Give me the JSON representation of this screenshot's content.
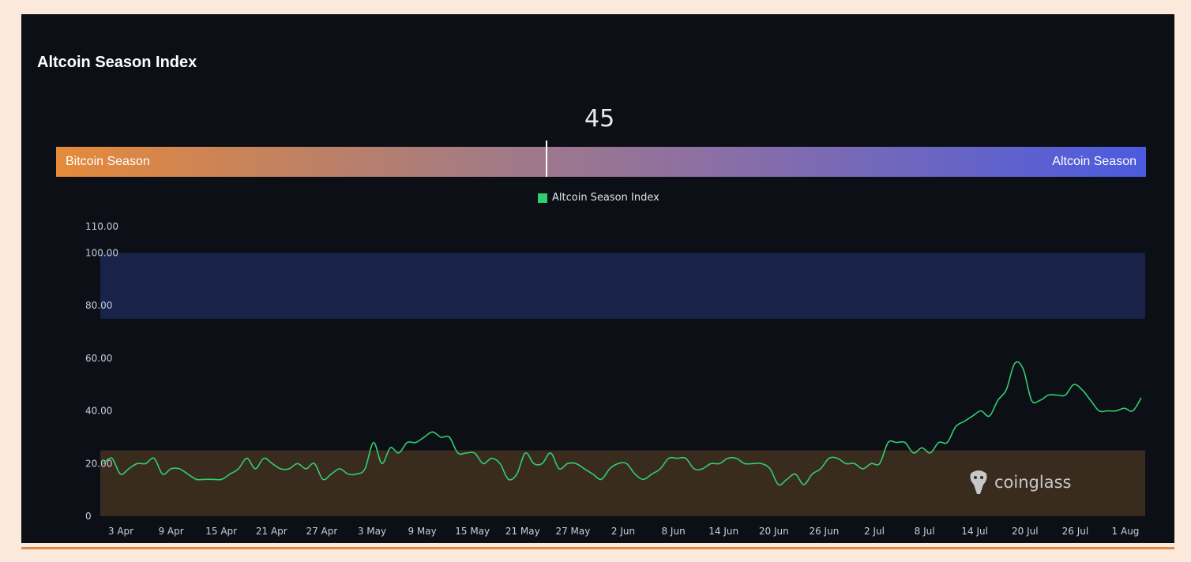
{
  "chart_data": {
    "type": "line",
    "title": "Altcoin Season Index",
    "current_value": "45",
    "gauge": {
      "left_label": "Bitcoin Season",
      "right_label": "Altcoin Season",
      "value": 45,
      "range": [
        0,
        100
      ]
    },
    "legend": [
      {
        "name": "Altcoin Season Index",
        "color": "#2fcf6f"
      }
    ],
    "ylim": [
      0,
      110
    ],
    "yticks": [
      "0",
      "20.00",
      "40.00",
      "60.00",
      "80.00",
      "100.00",
      "110.00"
    ],
    "ytick_values": [
      0,
      20,
      40,
      60,
      80,
      100,
      110
    ],
    "bands": [
      {
        "from": 75,
        "to": 100,
        "color": "#19234a"
      },
      {
        "from": 0,
        "to": 25,
        "color": "#3a2b1f"
      }
    ],
    "x_ticks": [
      "3 Apr",
      "9 Apr",
      "15 Apr",
      "21 Apr",
      "27 Apr",
      "3 May",
      "9 May",
      "15 May",
      "21 May",
      "27 May",
      "2 Jun",
      "8 Jun",
      "14 Jun",
      "20 Jun",
      "26 Jun",
      "2 Jul",
      "8 Jul",
      "14 Jul",
      "20 Jul",
      "26 Jul",
      "1 Aug"
    ],
    "series": [
      {
        "name": "Altcoin Season Index",
        "color": "#2fcf6f",
        "values": [
          20,
          22,
          16,
          18,
          20,
          20,
          22,
          16,
          18,
          18,
          16,
          14,
          14,
          14,
          14,
          16,
          18,
          22,
          18,
          22,
          20,
          18,
          18,
          20,
          18,
          20,
          14,
          16,
          18,
          16,
          16,
          18,
          28,
          20,
          26,
          24,
          28,
          28,
          30,
          32,
          30,
          30,
          24,
          24,
          24,
          20,
          22,
          20,
          14,
          16,
          24,
          20,
          20,
          24,
          18,
          20,
          20,
          18,
          16,
          14,
          18,
          20,
          20,
          16,
          14,
          16,
          18,
          22,
          22,
          22,
          18,
          18,
          20,
          20,
          22,
          22,
          20,
          20,
          20,
          18,
          12,
          14,
          16,
          12,
          16,
          18,
          22,
          22,
          20,
          20,
          18,
          20,
          20,
          28,
          28,
          28,
          24,
          26,
          24,
          28,
          28,
          34,
          36,
          38,
          40,
          38,
          44,
          48,
          58,
          56,
          44,
          44,
          46,
          46,
          46,
          50,
          48,
          44,
          40,
          40,
          40,
          41,
          40,
          45
        ]
      }
    ]
  },
  "watermark": {
    "text": "coinglass",
    "icon": "coinglass-logo-icon"
  }
}
